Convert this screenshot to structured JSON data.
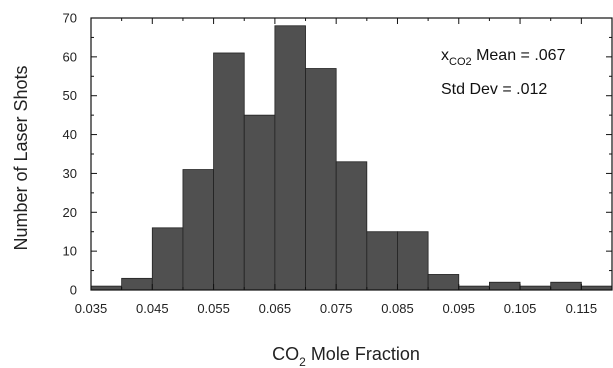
{
  "chart_data": {
    "type": "bar",
    "title": "",
    "xlabel": "CO2 Mole Fraction",
    "xlabel_main": "CO",
    "xlabel_sub": "2",
    "xlabel_rest": " Mole Fraction",
    "ylabel": "Number of Laser Shots",
    "xlim": [
      0.035,
      0.12
    ],
    "ylim": [
      0,
      70
    ],
    "xticks": [
      0.035,
      0.045,
      0.055,
      0.065,
      0.075,
      0.085,
      0.095,
      0.105,
      0.115
    ],
    "xtick_labels": [
      "0.035",
      "0.045",
      "0.055",
      "0.065",
      "0.075",
      "0.085",
      "0.095",
      "0.105",
      "0.115"
    ],
    "yticks": [
      0,
      10,
      20,
      30,
      40,
      50,
      60,
      70
    ],
    "ytick_labels": [
      "0",
      "10",
      "20",
      "30",
      "40",
      "50",
      "60",
      "70"
    ],
    "bin_width": 0.005,
    "bins": [
      {
        "x0": 0.035,
        "value": 1
      },
      {
        "x0": 0.04,
        "value": 3
      },
      {
        "x0": 0.045,
        "value": 16
      },
      {
        "x0": 0.05,
        "value": 31
      },
      {
        "x0": 0.055,
        "value": 61
      },
      {
        "x0": 0.06,
        "value": 45
      },
      {
        "x0": 0.065,
        "value": 68
      },
      {
        "x0": 0.07,
        "value": 57
      },
      {
        "x0": 0.075,
        "value": 33
      },
      {
        "x0": 0.08,
        "value": 15
      },
      {
        "x0": 0.085,
        "value": 15
      },
      {
        "x0": 0.09,
        "value": 4
      },
      {
        "x0": 0.095,
        "value": 1
      },
      {
        "x0": 0.1,
        "value": 2
      },
      {
        "x0": 0.105,
        "value": 1
      },
      {
        "x0": 0.11,
        "value": 2
      },
      {
        "x0": 0.115,
        "value": 1
      }
    ],
    "annotations": {
      "mean_symbol": "x",
      "mean_symbol_sub": "CO2",
      "mean_text": " Mean = .067",
      "std_text": "Std Dev = .012"
    },
    "grid": false,
    "bar_color": "#505050"
  }
}
